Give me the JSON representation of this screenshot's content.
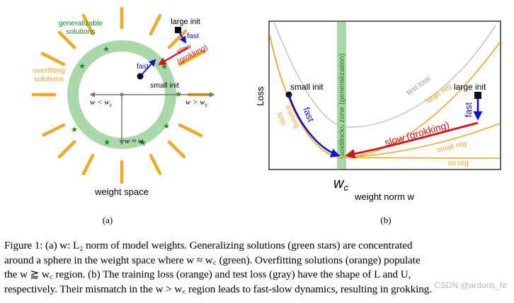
{
  "panel_a": {
    "generalizable": [
      "generalizable",
      "solutions"
    ],
    "overfitting": [
      "overfitting",
      "solutions"
    ],
    "large_init": "large init",
    "small_init": "small init",
    "fast_top": "fast",
    "fast_small": "fast",
    "slow": [
      "slow",
      "(grokking)"
    ],
    "w_less": "w < w",
    "w_less_sub": "c",
    "w_greater": "w > w",
    "w_greater_sub": "c",
    "w_approx": "w ≈ w",
    "w_approx_sub": "c",
    "space_label": "weight space",
    "sub_label": "(a)",
    "colors": {
      "ring": "#a9d8a9",
      "star": "#1a8a1a",
      "overfit": "#f5a623",
      "fast": "#1010d0",
      "slow": "#dd1010"
    }
  },
  "panel_b": {
    "y_label": "Loss",
    "goldilocks": "Goldilocks zone (generalization)",
    "small_init": "small init",
    "large_init": "large init",
    "training_loss": [
      "training",
      "loss"
    ],
    "test_loss": "test loss",
    "large_reg": "large reg",
    "small_reg": "small reg",
    "no_reg": "no reg",
    "fast_left": "fast",
    "fast_right": "fast",
    "slow": "slow (grokking)",
    "wc_main": "w",
    "wc_sub": "c",
    "x_label": "weight norm w",
    "sub_label": "(b)",
    "colors": {
      "test": "#bbbbbb",
      "train": "#f5a623",
      "zone": "#a9d8a9",
      "fast": "#1010d0",
      "slow": "#dd1010"
    }
  },
  "caption": {
    "line1": "Figure 1: (a) w: L₂ norm of model weights. Generalizing solutions (green stars) are concentrated",
    "line2": "around a sphere in the weight space where w ≈ w꜀ (green). Overfitting solutions (orange) populate",
    "line3": "the w ⪆ w꜀ region. (b) The training loss (orange) and test loss (gray) have the shape of L and U,",
    "line4": "respectively. Their mismatch in the w > w꜀ region leads to fast-slow dynamics, resulting in grokking."
  },
  "watermark": "CSDN @ardoris_fe"
}
